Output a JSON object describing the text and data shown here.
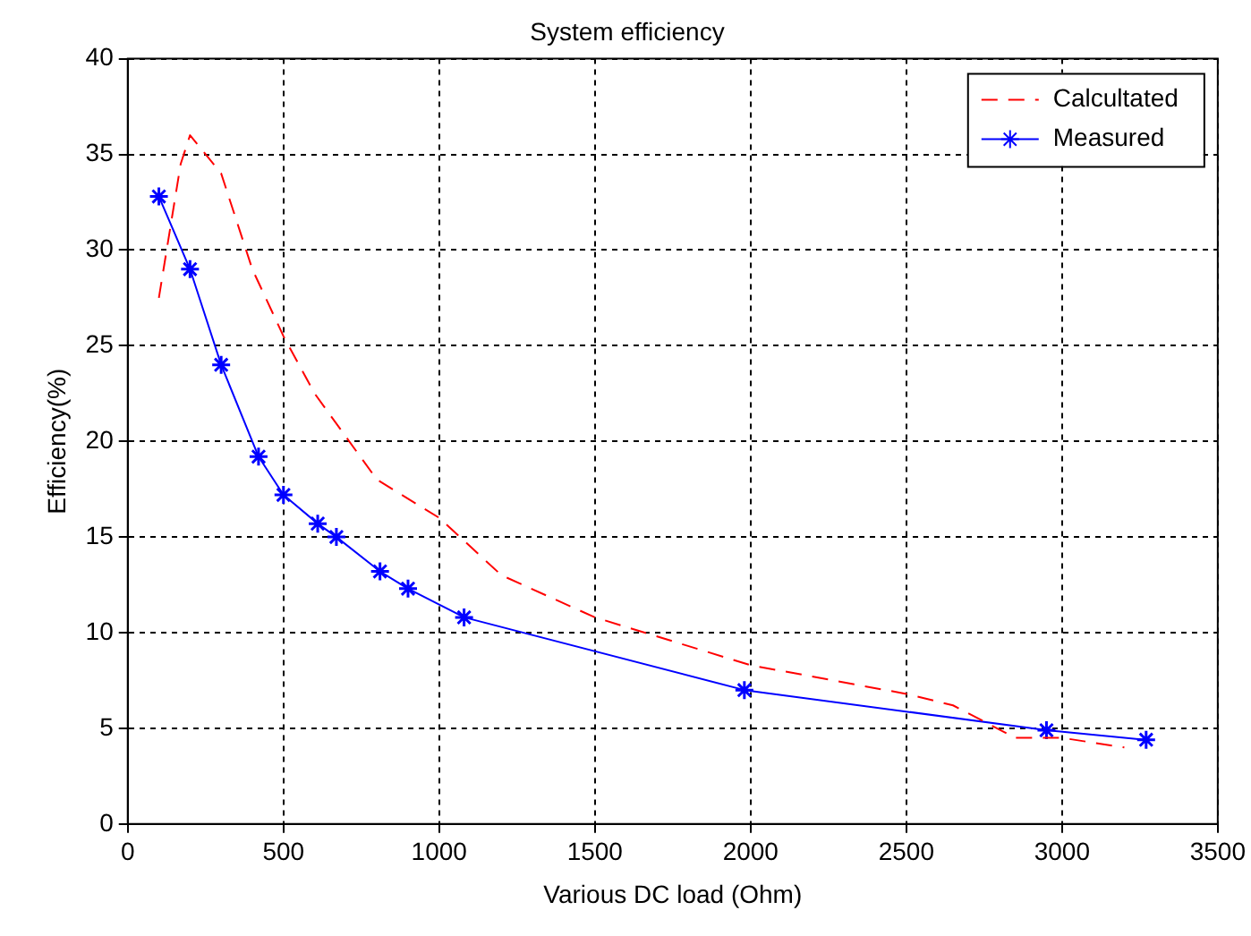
{
  "chart_data": {
    "type": "line",
    "title": "System efficiency",
    "xlabel": "Various DC load (Ohm)",
    "ylabel": "Efficiency(%)",
    "xlim": [
      0,
      3500
    ],
    "xticks": [
      0,
      500,
      1000,
      1500,
      2000,
      2500,
      3000,
      3500
    ],
    "ylim": [
      0,
      40
    ],
    "yticks": [
      0,
      5,
      10,
      15,
      20,
      25,
      30,
      35,
      40
    ],
    "grid": true,
    "legend": "top right",
    "series": [
      {
        "name": "Calcultated",
        "color": "#ff0000",
        "line_style": "dashed",
        "marker": "none",
        "x": [
          100,
          170,
          200,
          300,
          400,
          500,
          600,
          800,
          1000,
          1200,
          1500,
          2000,
          2500,
          2650,
          2850,
          3000,
          3200
        ],
        "values": [
          27.5,
          34.5,
          36,
          34,
          29,
          25.5,
          22.5,
          18,
          16,
          13,
          10.8,
          8.3,
          6.8,
          6.2,
          4.5,
          4.5,
          4
        ]
      },
      {
        "name": "Measured",
        "color": "#0000ff",
        "line_style": "solid",
        "marker": "cross",
        "x": [
          100,
          200,
          300,
          420,
          500,
          610,
          670,
          810,
          900,
          1080,
          1980,
          2950,
          3270
        ],
        "values": [
          32.8,
          29,
          24,
          19.2,
          17.2,
          15.7,
          15,
          13.2,
          12.3,
          10.8,
          7,
          4.9,
          4.4
        ]
      }
    ]
  }
}
